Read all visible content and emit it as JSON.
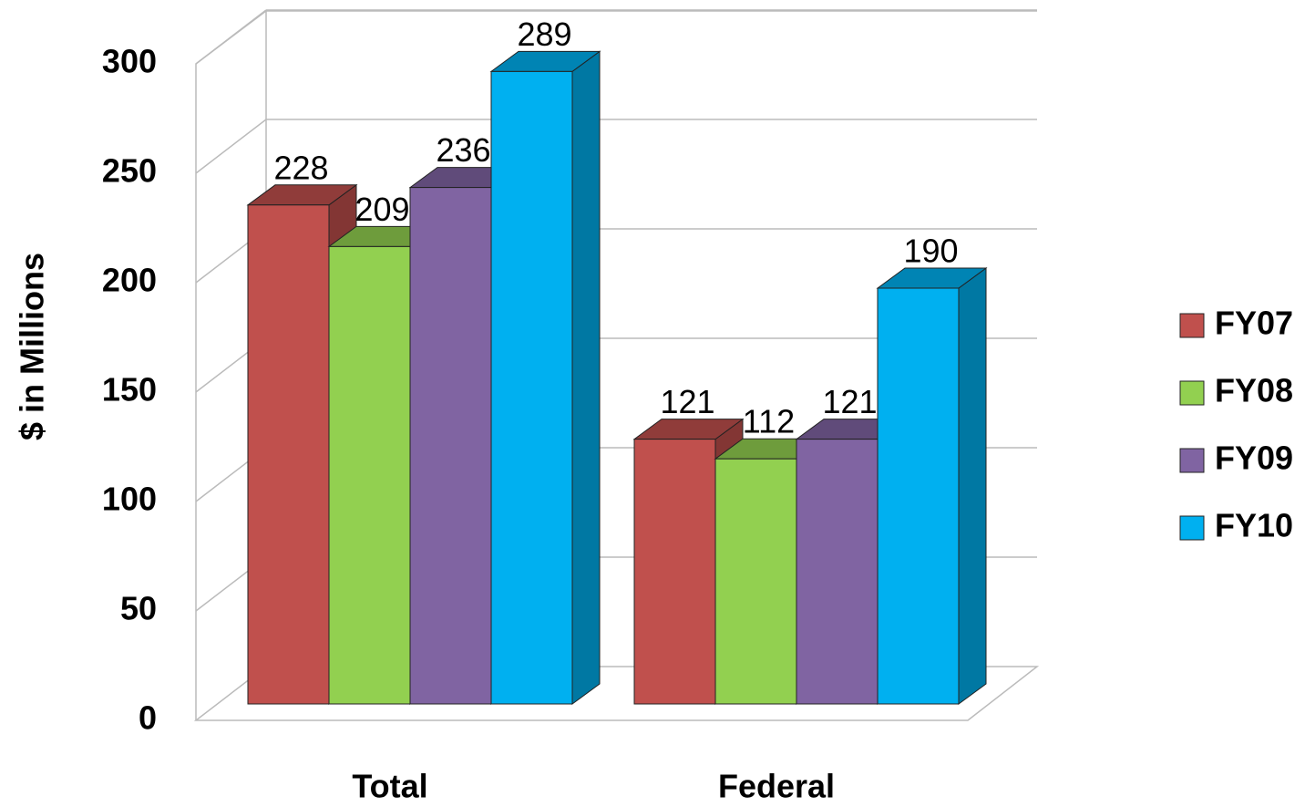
{
  "chart_data": {
    "type": "bar3d",
    "ylabel": "$ in Millions",
    "categories": [
      "Total",
      "Federal"
    ],
    "series": [
      {
        "name": "FY07",
        "color": "#c0504d",
        "values": [
          228,
          121
        ]
      },
      {
        "name": "FY08",
        "color": "#92d050",
        "values": [
          209,
          112
        ]
      },
      {
        "name": "FY09",
        "color": "#8064a2",
        "values": [
          236,
          121
        ]
      },
      {
        "name": "FY10",
        "color": "#00b0f0",
        "values": [
          289,
          190
        ]
      }
    ],
    "ylim": [
      0,
      300
    ],
    "yticks": [
      0,
      50,
      100,
      150,
      200,
      250,
      300
    ],
    "grid": true,
    "legend": "right"
  }
}
